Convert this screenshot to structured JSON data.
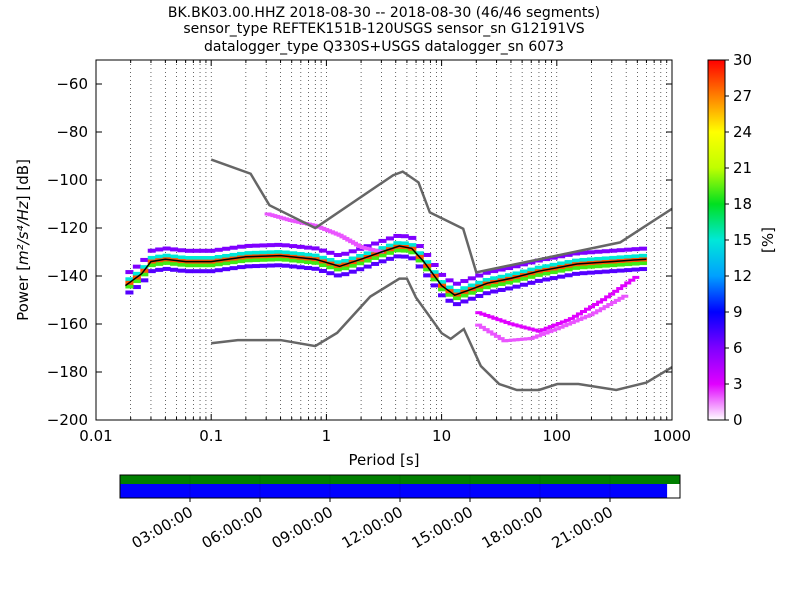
{
  "title": {
    "line1": "BK.BK03.00.HHZ   2018-08-30 -- 2018-08-30  (46/46 segments)",
    "line2": "sensor_type REFTEK151B-120USGS sensor_sn G12191VS",
    "line3": "datalogger_type Q330S+USGS datalogger_sn 6073"
  },
  "chart_data": {
    "type": "heatmap",
    "subtype": "probabilistic-power-spectral-density",
    "xlabel": "Period [s]",
    "ylabel": "Power [m²/s⁴/Hz] [dB]",
    "ylabel_parts": {
      "prefix": "Power [",
      "unit": "m²/s⁴/Hz",
      "suffix": "] [dB]"
    },
    "xscale": "log",
    "xlim": [
      0.01,
      1000
    ],
    "ylim": [
      -200,
      -50
    ],
    "x_ticks": [
      0.01,
      0.1,
      1,
      10,
      100,
      1000
    ],
    "x_tick_labels": [
      "0.01",
      "0.1",
      "1",
      "10",
      "100",
      "1000"
    ],
    "y_ticks": [
      -200,
      -180,
      -160,
      -140,
      -120,
      -100,
      -80,
      -60
    ],
    "y_tick_labels": [
      "−200",
      "−180",
      "−160",
      "−140",
      "−120",
      "−100",
      "−80",
      "−60"
    ],
    "grid": "dotted vertical at decade minor ticks",
    "colorbar": {
      "label": "[%]",
      "range": [
        0,
        30
      ],
      "ticks": [
        0,
        3,
        6,
        9,
        12,
        15,
        18,
        21,
        24,
        27,
        30
      ],
      "colors": [
        "#ffffff",
        "#e000ff",
        "#7f00ff",
        "#0000ff",
        "#00a0ff",
        "#00e8d8",
        "#00e020",
        "#bfff00",
        "#ffff00",
        "#ff8000",
        "#ff0000"
      ]
    },
    "noise_models": [
      {
        "name": "NHNM",
        "color": "#666666",
        "points": [
          [
            0.1,
            -91.5
          ],
          [
            0.22,
            -97.4
          ],
          [
            0.32,
            -110.5
          ],
          [
            0.8,
            -120
          ],
          [
            3.8,
            -98
          ],
          [
            4.6,
            -96.5
          ],
          [
            6.3,
            -101
          ],
          [
            7.9,
            -113.5
          ],
          [
            15.4,
            -120.3
          ],
          [
            20,
            -138.5
          ],
          [
            354.8,
            -126
          ],
          [
            1000,
            -112
          ]
        ]
      },
      {
        "name": "NLNM",
        "color": "#666666",
        "points": [
          [
            0.1,
            -168
          ],
          [
            0.17,
            -166.7
          ],
          [
            0.4,
            -166.7
          ],
          [
            0.8,
            -169.2
          ],
          [
            1.24,
            -163.7
          ],
          [
            2.4,
            -148.6
          ],
          [
            4.3,
            -141.1
          ],
          [
            5,
            -141.1
          ],
          [
            6,
            -149
          ],
          [
            10,
            -163.8
          ],
          [
            12,
            -166.2
          ],
          [
            15.6,
            -162.1
          ],
          [
            21.9,
            -177.5
          ],
          [
            31.6,
            -185
          ],
          [
            45,
            -187.5
          ],
          [
            70,
            -187.5
          ],
          [
            101,
            -185
          ],
          [
            154,
            -185
          ],
          [
            328,
            -187.5
          ],
          [
            600,
            -184.4
          ],
          [
            1000,
            -178
          ]
        ]
      }
    ],
    "mode_line": {
      "color": "#000000",
      "points": [
        [
          0.018,
          -144
        ],
        [
          0.025,
          -139
        ],
        [
          0.03,
          -134
        ],
        [
          0.04,
          -133
        ],
        [
          0.06,
          -134
        ],
        [
          0.1,
          -134
        ],
        [
          0.2,
          -132
        ],
        [
          0.4,
          -131.5
        ],
        [
          0.8,
          -133
        ],
        [
          1.3,
          -136
        ],
        [
          2,
          -133
        ],
        [
          3,
          -130
        ],
        [
          4.3,
          -127.5
        ],
        [
          5.5,
          -128.5
        ],
        [
          7,
          -134
        ],
        [
          10,
          -144
        ],
        [
          13,
          -148
        ],
        [
          17,
          -146
        ],
        [
          25,
          -143
        ],
        [
          40,
          -141
        ],
        [
          70,
          -138
        ],
        [
          150,
          -135
        ],
        [
          300,
          -134
        ],
        [
          600,
          -133
        ]
      ]
    },
    "density_series": [
      {
        "name": "spread-upper",
        "offset": 4.5,
        "level": 6
      },
      {
        "name": "spread-lower",
        "offset": -4,
        "level": 7
      },
      {
        "name": "core-high",
        "offset": 1.5,
        "level": 15
      },
      {
        "name": "core-low",
        "offset": -1.5,
        "level": 19
      },
      {
        "name": "core",
        "offset": 0,
        "level": 28
      }
    ],
    "scatter_bands": [
      {
        "name": "low-period-outliers",
        "points": [
          [
            0.3,
            -114
          ],
          [
            0.5,
            -117
          ],
          [
            0.8,
            -119
          ],
          [
            1.3,
            -123
          ],
          [
            2,
            -128
          ],
          [
            3,
            -130
          ]
        ],
        "level": 2
      },
      {
        "name": "long-period-lower",
        "points": [
          [
            20,
            -155
          ],
          [
            40,
            -160
          ],
          [
            70,
            -163
          ],
          [
            130,
            -158
          ],
          [
            250,
            -150
          ],
          [
            500,
            -140
          ]
        ],
        "level": 3
      },
      {
        "name": "long-period-lowest",
        "points": [
          [
            20,
            -160
          ],
          [
            35,
            -167
          ],
          [
            60,
            -166
          ],
          [
            100,
            -162
          ],
          [
            200,
            -156
          ],
          [
            400,
            -148
          ]
        ],
        "level": 2
      }
    ]
  },
  "timeline": {
    "tick_labels": [
      "03:00:00",
      "06:00:00",
      "09:00:00",
      "12:00:00",
      "15:00:00",
      "18:00:00",
      "21:00:00"
    ],
    "data_coverage_color": "#007f00",
    "gap_overlap_color": "#0000ff",
    "coverage_fraction": 0.977
  }
}
